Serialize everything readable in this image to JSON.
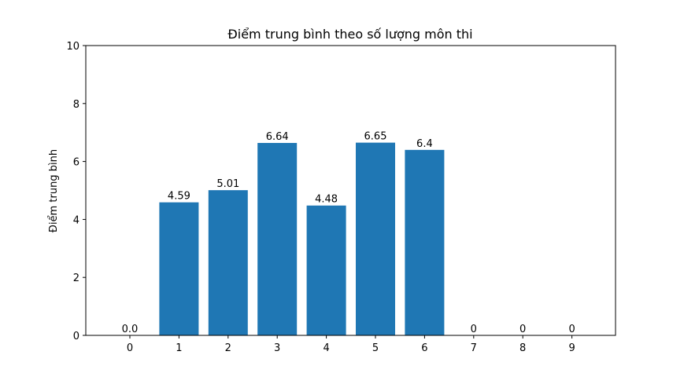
{
  "chart_data": {
    "type": "bar",
    "title": "Điểm trung bình theo số lượng môn thi",
    "xlabel": "",
    "ylabel": "Điểm trung bình",
    "categories": [
      "0",
      "1",
      "2",
      "3",
      "4",
      "5",
      "6",
      "7",
      "8",
      "9"
    ],
    "values": [
      0.0,
      4.59,
      5.01,
      6.64,
      4.48,
      6.65,
      6.4,
      0,
      0,
      0
    ],
    "data_labels": [
      "0.0",
      "4.59",
      "5.01",
      "6.64",
      "4.48",
      "6.65",
      "6.4",
      "0",
      "0",
      "0"
    ],
    "ylim": [
      0,
      10
    ],
    "yticks": [
      "0",
      "2",
      "4",
      "6",
      "8",
      "10"
    ],
    "grid": false,
    "bar_color": "#1f77b4"
  }
}
